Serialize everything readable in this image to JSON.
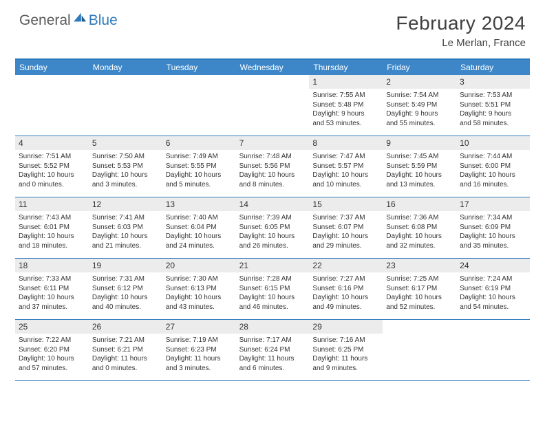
{
  "brand": {
    "part1": "General",
    "part2": "Blue",
    "brand_color": "#2f79bd",
    "text_color": "#5a5a5a"
  },
  "title": "February 2024",
  "location": "Le Merlan, France",
  "header_bg": "#3d87c9",
  "border_color": "#2f79bd",
  "daynum_bg": "#ececec",
  "days_of_week": [
    "Sunday",
    "Monday",
    "Tuesday",
    "Wednesday",
    "Thursday",
    "Friday",
    "Saturday"
  ],
  "weeks": [
    [
      null,
      null,
      null,
      null,
      {
        "n": "1",
        "sunrise": "Sunrise: 7:55 AM",
        "sunset": "Sunset: 5:48 PM",
        "dl1": "Daylight: 9 hours",
        "dl2": "and 53 minutes."
      },
      {
        "n": "2",
        "sunrise": "Sunrise: 7:54 AM",
        "sunset": "Sunset: 5:49 PM",
        "dl1": "Daylight: 9 hours",
        "dl2": "and 55 minutes."
      },
      {
        "n": "3",
        "sunrise": "Sunrise: 7:53 AM",
        "sunset": "Sunset: 5:51 PM",
        "dl1": "Daylight: 9 hours",
        "dl2": "and 58 minutes."
      }
    ],
    [
      {
        "n": "4",
        "sunrise": "Sunrise: 7:51 AM",
        "sunset": "Sunset: 5:52 PM",
        "dl1": "Daylight: 10 hours",
        "dl2": "and 0 minutes."
      },
      {
        "n": "5",
        "sunrise": "Sunrise: 7:50 AM",
        "sunset": "Sunset: 5:53 PM",
        "dl1": "Daylight: 10 hours",
        "dl2": "and 3 minutes."
      },
      {
        "n": "6",
        "sunrise": "Sunrise: 7:49 AM",
        "sunset": "Sunset: 5:55 PM",
        "dl1": "Daylight: 10 hours",
        "dl2": "and 5 minutes."
      },
      {
        "n": "7",
        "sunrise": "Sunrise: 7:48 AM",
        "sunset": "Sunset: 5:56 PM",
        "dl1": "Daylight: 10 hours",
        "dl2": "and 8 minutes."
      },
      {
        "n": "8",
        "sunrise": "Sunrise: 7:47 AM",
        "sunset": "Sunset: 5:57 PM",
        "dl1": "Daylight: 10 hours",
        "dl2": "and 10 minutes."
      },
      {
        "n": "9",
        "sunrise": "Sunrise: 7:45 AM",
        "sunset": "Sunset: 5:59 PM",
        "dl1": "Daylight: 10 hours",
        "dl2": "and 13 minutes."
      },
      {
        "n": "10",
        "sunrise": "Sunrise: 7:44 AM",
        "sunset": "Sunset: 6:00 PM",
        "dl1": "Daylight: 10 hours",
        "dl2": "and 16 minutes."
      }
    ],
    [
      {
        "n": "11",
        "sunrise": "Sunrise: 7:43 AM",
        "sunset": "Sunset: 6:01 PM",
        "dl1": "Daylight: 10 hours",
        "dl2": "and 18 minutes."
      },
      {
        "n": "12",
        "sunrise": "Sunrise: 7:41 AM",
        "sunset": "Sunset: 6:03 PM",
        "dl1": "Daylight: 10 hours",
        "dl2": "and 21 minutes."
      },
      {
        "n": "13",
        "sunrise": "Sunrise: 7:40 AM",
        "sunset": "Sunset: 6:04 PM",
        "dl1": "Daylight: 10 hours",
        "dl2": "and 24 minutes."
      },
      {
        "n": "14",
        "sunrise": "Sunrise: 7:39 AM",
        "sunset": "Sunset: 6:05 PM",
        "dl1": "Daylight: 10 hours",
        "dl2": "and 26 minutes."
      },
      {
        "n": "15",
        "sunrise": "Sunrise: 7:37 AM",
        "sunset": "Sunset: 6:07 PM",
        "dl1": "Daylight: 10 hours",
        "dl2": "and 29 minutes."
      },
      {
        "n": "16",
        "sunrise": "Sunrise: 7:36 AM",
        "sunset": "Sunset: 6:08 PM",
        "dl1": "Daylight: 10 hours",
        "dl2": "and 32 minutes."
      },
      {
        "n": "17",
        "sunrise": "Sunrise: 7:34 AM",
        "sunset": "Sunset: 6:09 PM",
        "dl1": "Daylight: 10 hours",
        "dl2": "and 35 minutes."
      }
    ],
    [
      {
        "n": "18",
        "sunrise": "Sunrise: 7:33 AM",
        "sunset": "Sunset: 6:11 PM",
        "dl1": "Daylight: 10 hours",
        "dl2": "and 37 minutes."
      },
      {
        "n": "19",
        "sunrise": "Sunrise: 7:31 AM",
        "sunset": "Sunset: 6:12 PM",
        "dl1": "Daylight: 10 hours",
        "dl2": "and 40 minutes."
      },
      {
        "n": "20",
        "sunrise": "Sunrise: 7:30 AM",
        "sunset": "Sunset: 6:13 PM",
        "dl1": "Daylight: 10 hours",
        "dl2": "and 43 minutes."
      },
      {
        "n": "21",
        "sunrise": "Sunrise: 7:28 AM",
        "sunset": "Sunset: 6:15 PM",
        "dl1": "Daylight: 10 hours",
        "dl2": "and 46 minutes."
      },
      {
        "n": "22",
        "sunrise": "Sunrise: 7:27 AM",
        "sunset": "Sunset: 6:16 PM",
        "dl1": "Daylight: 10 hours",
        "dl2": "and 49 minutes."
      },
      {
        "n": "23",
        "sunrise": "Sunrise: 7:25 AM",
        "sunset": "Sunset: 6:17 PM",
        "dl1": "Daylight: 10 hours",
        "dl2": "and 52 minutes."
      },
      {
        "n": "24",
        "sunrise": "Sunrise: 7:24 AM",
        "sunset": "Sunset: 6:19 PM",
        "dl1": "Daylight: 10 hours",
        "dl2": "and 54 minutes."
      }
    ],
    [
      {
        "n": "25",
        "sunrise": "Sunrise: 7:22 AM",
        "sunset": "Sunset: 6:20 PM",
        "dl1": "Daylight: 10 hours",
        "dl2": "and 57 minutes."
      },
      {
        "n": "26",
        "sunrise": "Sunrise: 7:21 AM",
        "sunset": "Sunset: 6:21 PM",
        "dl1": "Daylight: 11 hours",
        "dl2": "and 0 minutes."
      },
      {
        "n": "27",
        "sunrise": "Sunrise: 7:19 AM",
        "sunset": "Sunset: 6:23 PM",
        "dl1": "Daylight: 11 hours",
        "dl2": "and 3 minutes."
      },
      {
        "n": "28",
        "sunrise": "Sunrise: 7:17 AM",
        "sunset": "Sunset: 6:24 PM",
        "dl1": "Daylight: 11 hours",
        "dl2": "and 6 minutes."
      },
      {
        "n": "29",
        "sunrise": "Sunrise: 7:16 AM",
        "sunset": "Sunset: 6:25 PM",
        "dl1": "Daylight: 11 hours",
        "dl2": "and 9 minutes."
      },
      null,
      null
    ]
  ]
}
